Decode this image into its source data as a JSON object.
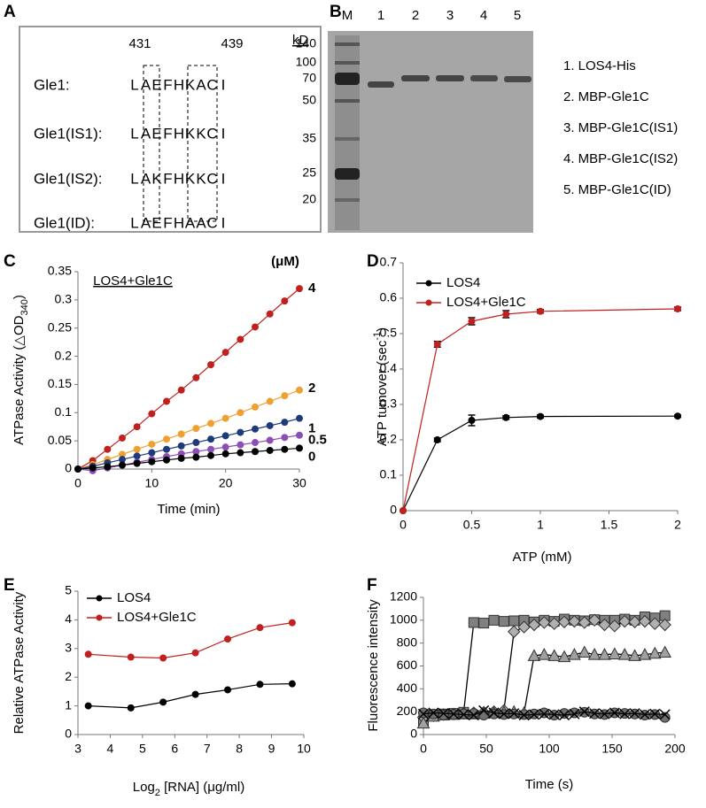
{
  "panel_labels": [
    "A",
    "B",
    "C",
    "D",
    "E",
    "F"
  ],
  "sequence_panel": {
    "positions": [
      "431",
      "439"
    ],
    "highlight_color": "#e8202a",
    "rows": [
      {
        "label": "Gle1:",
        "residues": [
          "L",
          "A",
          "E",
          "F",
          "H",
          "K",
          "A",
          "C",
          "I"
        ]
      },
      {
        "label": "Gle1(IS1):",
        "residues": [
          "L",
          "A",
          "E",
          "F",
          "H",
          "K",
          "K",
          "C",
          "I"
        ],
        "highlighted": [
          6
        ]
      },
      {
        "label": "Gle1(IS2):",
        "residues": [
          "L",
          "A",
          "K",
          "F",
          "H",
          "K",
          "K",
          "C",
          "I"
        ],
        "highlighted": [
          2,
          6
        ]
      },
      {
        "label": "Gle1(ID):",
        "residues": [
          "L",
          "A",
          "E",
          "F",
          "H",
          "A",
          "A",
          "C",
          "I"
        ],
        "highlighted": [
          5
        ]
      }
    ]
  },
  "gel_panel": {
    "unit": "kD",
    "lanes": [
      "M",
      "1",
      "2",
      "3",
      "4",
      "5"
    ],
    "markers": [
      "140",
      "100",
      "70",
      "50",
      "35",
      "25",
      "20"
    ],
    "legend": [
      "1. LOS4-His",
      "2. MBP-Gle1C",
      "3. MBP-Gle1C(IS1)",
      "4. MBP-Gle1C(IS2)",
      "5. MBP-Gle1C(ID)"
    ]
  },
  "chart_data": [
    {
      "type": "line",
      "title": "LOS4+Gle1C",
      "unit_label": "(μM)",
      "series_labels": "end",
      "xlabel": "Time (min)",
      "ylabel": [
        "ATPase Activity (△OD",
        "340",
        ")"
      ],
      "x": [
        0,
        2,
        4,
        6,
        8,
        10,
        12,
        14,
        16,
        18,
        20,
        22,
        24,
        26,
        28,
        30
      ],
      "xlim": [
        0,
        30
      ],
      "xticks": [
        0,
        10,
        20,
        30
      ],
      "ylim": [
        0,
        0.35
      ],
      "yticks": [
        0,
        0.05,
        0.1,
        0.15,
        0.2,
        0.25,
        0.3,
        0.35
      ],
      "marker": "circle",
      "series": [
        {
          "name": "4",
          "color": "#c0201e",
          "values": [
            0,
            0.015,
            0.035,
            0.055,
            0.075,
            0.098,
            0.12,
            0.14,
            0.162,
            0.185,
            0.207,
            0.23,
            0.252,
            0.275,
            0.298,
            0.32
          ]
        },
        {
          "name": "2",
          "color": "#f0a030",
          "values": [
            0,
            0.008,
            0.017,
            0.026,
            0.035,
            0.044,
            0.053,
            0.062,
            0.072,
            0.081,
            0.09,
            0.1,
            0.11,
            0.12,
            0.13,
            0.14
          ]
        },
        {
          "name": "1",
          "color": "#1f3a7a",
          "values": [
            0,
            0.005,
            0.011,
            0.017,
            0.023,
            0.029,
            0.035,
            0.041,
            0.047,
            0.053,
            0.059,
            0.065,
            0.071,
            0.077,
            0.083,
            0.09
          ]
        },
        {
          "name": "0.5",
          "color": "#8b4fb5",
          "values": [
            0,
            -0.003,
            0.002,
            0.007,
            0.012,
            0.017,
            0.022,
            0.027,
            0.031,
            0.035,
            0.039,
            0.043,
            0.047,
            0.051,
            0.056,
            0.06
          ]
        },
        {
          "name": "0",
          "color": "#000000",
          "values": [
            0,
            0.002,
            0.004,
            0.007,
            0.01,
            0.013,
            0.016,
            0.019,
            0.021,
            0.024,
            0.027,
            0.029,
            0.031,
            0.033,
            0.035,
            0.037
          ]
        }
      ]
    },
    {
      "type": "line",
      "legend": "top-left",
      "xlabel": "ATP (mM)",
      "ylabel": [
        "ATP turnover (sec",
        "-1",
        ")"
      ],
      "x": [
        0,
        0.25,
        0.5,
        0.75,
        1,
        2
      ],
      "xlim": [
        0,
        2
      ],
      "xticks": [
        0,
        0.5,
        1,
        1.5,
        2
      ],
      "ylim": [
        0,
        0.7
      ],
      "yticks": [
        0,
        0.1,
        0.2,
        0.3,
        0.4,
        0.5,
        0.6,
        0.7
      ],
      "marker": "circle",
      "series": [
        {
          "name": "LOS4",
          "color": "#000000",
          "values": [
            0,
            0.2,
            0.255,
            0.263,
            0.266,
            0.267
          ],
          "errors": [
            0,
            0.005,
            0.015,
            0.005,
            0.004,
            0.003
          ]
        },
        {
          "name": "LOS4+Gle1C",
          "color": "#c0201e",
          "values": [
            0,
            0.47,
            0.535,
            0.555,
            0.563,
            0.57
          ],
          "errors": [
            0,
            0.008,
            0.01,
            0.01,
            0.005,
            0.005
          ]
        }
      ]
    },
    {
      "type": "line",
      "legend": "top-left",
      "xlabel": [
        "Log",
        "2",
        " [RNA] (μg/ml)"
      ],
      "ylabel": "Relative ATPase Activity",
      "x": [
        3.32,
        4.64,
        5.64,
        6.64,
        7.64,
        8.64,
        9.64
      ],
      "xlim": [
        3,
        10
      ],
      "xticks": [
        3,
        4,
        5,
        6,
        7,
        8,
        9,
        10
      ],
      "ylim": [
        0,
        5
      ],
      "yticks": [
        0,
        1,
        2,
        3,
        4,
        5
      ],
      "marker": "circle",
      "series": [
        {
          "name": "LOS4",
          "color": "#000000",
          "values": [
            1,
            0.93,
            1.13,
            1.4,
            1.56,
            1.75,
            1.77
          ]
        },
        {
          "name": "LOS4+Gle1C",
          "color": "#c0201e",
          "values": [
            2.8,
            2.7,
            2.67,
            2.85,
            3.33,
            3.73,
            3.9
          ]
        }
      ]
    },
    {
      "type": "line",
      "xlabel": "Time (s)",
      "ylabel": "Fluorescence intensity",
      "x": [
        0,
        8,
        16,
        24,
        32,
        40,
        48,
        56,
        64,
        72,
        80,
        88,
        96,
        104,
        112,
        120,
        128,
        136,
        144,
        152,
        160,
        168,
        176,
        184,
        192
      ],
      "xlim": [
        0,
        200
      ],
      "xticks": [
        0,
        50,
        100,
        150,
        200
      ],
      "ylim": [
        0,
        1200
      ],
      "yticks": [
        0,
        200,
        400,
        600,
        800,
        1000,
        1200
      ],
      "series": [
        {
          "marker": "square",
          "color": "#808080",
          "values": [
            120,
            170,
            180,
            185,
            195,
            980,
            975,
            1000,
            990,
            995,
            1000,
            985,
            1000,
            990,
            1010,
            1000,
            995,
            1005,
            1000,
            1000,
            1010,
            1000,
            1030,
            1020,
            1040
          ]
        },
        {
          "marker": "diamond",
          "color": "#b0b0b0",
          "values": [
            150,
            165,
            175,
            180,
            185,
            190,
            195,
            200,
            210,
            900,
            940,
            960,
            980,
            970,
            985,
            990,
            980,
            1000,
            960,
            950,
            990,
            985,
            990,
            970,
            960
          ]
        },
        {
          "marker": "triangle",
          "color": "#a0a0a0",
          "values": [
            100,
            160,
            170,
            175,
            180,
            180,
            185,
            190,
            195,
            200,
            190,
            690,
            700,
            690,
            680,
            700,
            720,
            700,
            700,
            705,
            700,
            690,
            700,
            710,
            720
          ]
        },
        {
          "marker": "circle",
          "color": "#707070",
          "values": [
            190,
            180,
            170,
            175,
            180,
            185,
            170,
            180,
            175,
            180,
            175,
            180,
            190,
            170,
            185,
            190,
            195,
            180,
            175,
            190,
            185,
            180,
            170,
            175,
            150
          ]
        },
        {
          "marker": "cross",
          "color": "#000000",
          "values": [
            180,
            190,
            185,
            180,
            175,
            170,
            210,
            190,
            180,
            185,
            170,
            175,
            180,
            175,
            170,
            180,
            200,
            185,
            180,
            190,
            180,
            185,
            175,
            180,
            175
          ]
        }
      ]
    }
  ]
}
